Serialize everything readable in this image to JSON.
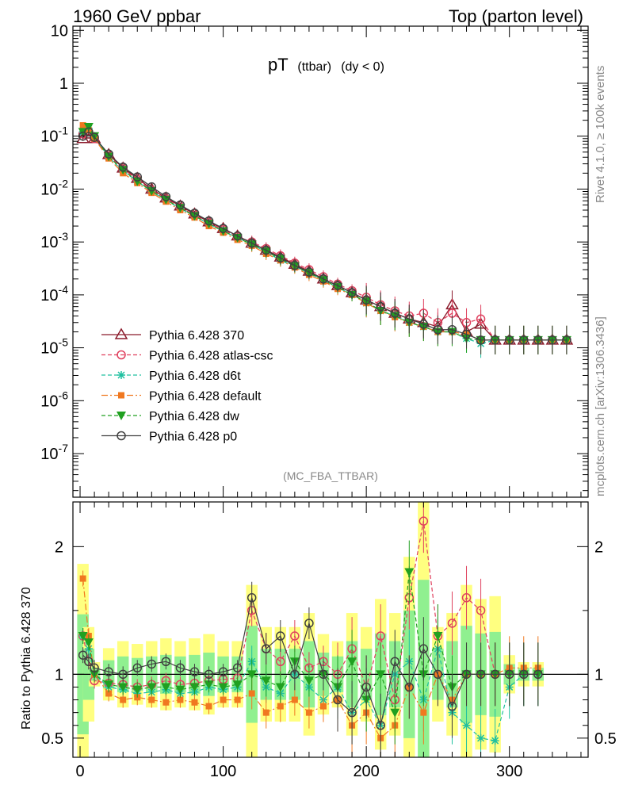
{
  "header": {
    "left": "1960 GeV ppbar",
    "right": "Top (parton level)"
  },
  "title": {
    "main": "pT",
    "sub": "(ttbar)",
    "cond": "(dy < 0)"
  },
  "analysis_label": "(MC_FBA_TTBAR)",
  "side_labels": {
    "rivet": "Rivet 4.1.0, ≥ 100k events",
    "mcplots": "mcplots.cern.ch [arXiv:1306.3436]"
  },
  "ratio_ylabel": "Ratio to Pythia 6.428 370",
  "colors": {
    "370": "#8b1a2b",
    "atlas": "#e0405e",
    "d6t": "#20c0a0",
    "default": "#f07820",
    "dw": "#20a020",
    "p0": "#404040",
    "band_yellow": "#ffff80",
    "band_green": "#90f090"
  },
  "chart_data": [
    {
      "type": "line",
      "title": "pT (ttbar) (dy < 0)",
      "xlabel": "",
      "ylabel": "",
      "xlim": [
        -5,
        355
      ],
      "ylim": [
        1.5e-08,
        12
      ],
      "yscale": "log",
      "ytick_labels": [
        "10",
        "1",
        "10^-1",
        "10^-2",
        "10^-3",
        "10^-4",
        "10^-5",
        "10^-6",
        "10^-7"
      ],
      "x": [
        2,
        6,
        10,
        20,
        30,
        40,
        50,
        60,
        70,
        80,
        90,
        100,
        110,
        120,
        130,
        140,
        150,
        160,
        170,
        180,
        190,
        200,
        210,
        220,
        230,
        240,
        250,
        260,
        270,
        280,
        290,
        300,
        310,
        320,
        330,
        340
      ],
      "series": [
        {
          "name": "Pythia 6.428 370",
          "values": [
            0.09,
            0.11,
            0.09,
            0.045,
            0.025,
            0.016,
            0.01,
            0.0068,
            0.0048,
            0.0034,
            0.0024,
            0.0018,
            0.0013,
            0.00095,
            0.0007,
            0.00052,
            0.00038,
            0.00028,
            0.0002,
            0.00015,
            0.00011,
            8e-05,
            6e-05,
            4.5e-05,
            3.5e-05,
            3e-05,
            2.5e-05,
            6.5e-05,
            2e-05,
            2.8e-05,
            1.4e-05,
            1.4e-05,
            1.4e-05,
            1.4e-05,
            1.4e-05,
            1.4e-05
          ]
        },
        {
          "name": "Pythia 6.428 atlas-csc",
          "values": [
            0.11,
            0.12,
            0.09,
            0.042,
            0.024,
            0.015,
            0.0095,
            0.0065,
            0.0045,
            0.0032,
            0.0023,
            0.0017,
            0.00125,
            0.001,
            0.00075,
            0.00055,
            0.0004,
            0.0003,
            0.00022,
            0.00016,
            0.00012,
            9e-05,
            6.5e-05,
            5e-05,
            4e-05,
            4.5e-05,
            3e-05,
            4.5e-05,
            3e-05,
            3.5e-05,
            1.4e-05,
            1.4e-05,
            1.4e-05,
            1.4e-05,
            1.4e-05,
            1.4e-05
          ]
        },
        {
          "name": "Pythia 6.428 d6t",
          "values": [
            0.12,
            0.14,
            0.1,
            0.04,
            0.022,
            0.014,
            0.009,
            0.0062,
            0.0043,
            0.0031,
            0.0022,
            0.0016,
            0.0012,
            0.0009,
            0.00065,
            0.00045,
            0.00034,
            0.00026,
            0.00019,
            0.00014,
            0.0001,
            7e-05,
            5e-05,
            4e-05,
            3e-05,
            2.5e-05,
            2e-05,
            2e-05,
            1.5e-05,
            1.2e-05,
            1.4e-05,
            1.4e-05,
            1.4e-05,
            1.4e-05,
            1.4e-05,
            1.4e-05
          ]
        },
        {
          "name": "Pythia 6.428 default",
          "values": [
            0.16,
            0.13,
            0.09,
            0.038,
            0.02,
            0.013,
            0.0085,
            0.0058,
            0.004,
            0.0029,
            0.002,
            0.0015,
            0.0011,
            0.00085,
            0.0006,
            0.00045,
            0.00033,
            0.00024,
            0.00018,
            0.00013,
            0.0001,
            7e-05,
            5e-05,
            3.8e-05,
            3e-05,
            2.5e-05,
            2e-05,
            2e-05,
            1.8e-05,
            1.4e-05,
            1.4e-05,
            1.4e-05,
            1.4e-05,
            1.4e-05,
            1.4e-05,
            1.4e-05
          ]
        },
        {
          "name": "Pythia 6.428 dw",
          "values": [
            0.12,
            0.15,
            0.1,
            0.041,
            0.023,
            0.014,
            0.0092,
            0.0063,
            0.0044,
            0.0031,
            0.0022,
            0.0016,
            0.0012,
            0.0009,
            0.00066,
            0.00048,
            0.00035,
            0.00026,
            0.00019,
            0.00014,
            0.0001,
            7.5e-05,
            5e-05,
            4e-05,
            3e-05,
            2.5e-05,
            2e-05,
            2e-05,
            1.5e-05,
            1.4e-05,
            1.4e-05,
            1.4e-05,
            1.4e-05,
            1.4e-05,
            1.4e-05,
            1.4e-05
          ]
        },
        {
          "name": "Pythia 6.428 p0",
          "values": [
            0.1,
            0.12,
            0.095,
            0.046,
            0.026,
            0.017,
            0.011,
            0.0072,
            0.005,
            0.0035,
            0.0025,
            0.0018,
            0.0013,
            0.00095,
            0.0007,
            0.0005,
            0.00036,
            0.00027,
            0.0002,
            0.00015,
            0.00011,
            8e-05,
            6e-05,
            4.5e-05,
            3.5e-05,
            2.8e-05,
            2.2e-05,
            2.2e-05,
            1.8e-05,
            1.4e-05,
            1.4e-05,
            1.4e-05,
            1.4e-05,
            1.4e-05,
            1.4e-05,
            1.4e-05
          ]
        }
      ]
    },
    {
      "type": "line",
      "title": "",
      "xlabel": "",
      "ylabel": "Ratio to Pythia 6.428 370",
      "xlim": [
        -5,
        355
      ],
      "ylim": [
        0.35,
        2.35
      ],
      "xtick_labels": [
        "0",
        "100",
        "200",
        "300"
      ],
      "ytick_labels": [
        "0.5",
        "1",
        "2"
      ],
      "x": [
        2,
        6,
        10,
        20,
        30,
        40,
        50,
        60,
        70,
        80,
        90,
        100,
        110,
        120,
        130,
        140,
        150,
        160,
        170,
        180,
        190,
        200,
        210,
        220,
        230,
        240,
        250,
        260,
        270,
        280,
        290,
        300,
        310,
        320
      ],
      "series": [
        {
          "name": "Pythia 6.428 atlas-csc",
          "values": [
            1.3,
            1.1,
            0.95,
            0.93,
            0.92,
            0.9,
            0.92,
            0.95,
            0.92,
            0.93,
            0.95,
            0.96,
            0.97,
            1.5,
            1.2,
            1.1,
            1.3,
            1.05,
            1.1,
            1.0,
            1.2,
            0.9,
            1.3,
            0.8,
            1.6,
            2.2,
            1.3,
            1.4,
            1.6,
            1.5,
            1.0,
            1.0,
            1.0,
            1.0
          ]
        },
        {
          "name": "Pythia 6.428 d6t",
          "values": [
            1.3,
            1.2,
            1.0,
            0.9,
            0.88,
            0.85,
            0.86,
            0.88,
            0.85,
            0.86,
            0.9,
            0.88,
            0.9,
            1.1,
            0.9,
            0.85,
            1.0,
            0.9,
            0.8,
            0.9,
            0.7,
            0.8,
            0.6,
            1.0,
            1.1,
            0.8,
            1.2,
            0.7,
            0.6,
            0.5,
            0.48,
            0.9,
            1.0,
            1.0
          ]
        },
        {
          "name": "Pythia 6.428 default",
          "values": [
            1.75,
            1.3,
            1.0,
            0.85,
            0.8,
            0.82,
            0.8,
            0.78,
            0.8,
            0.78,
            0.75,
            0.8,
            0.8,
            0.85,
            0.7,
            0.75,
            0.8,
            0.7,
            0.75,
            0.8,
            0.6,
            0.7,
            0.5,
            0.6,
            0.9,
            0.7,
            1.0,
            0.8,
            1.0,
            1.0,
            1.0,
            1.05,
            1.05,
            1.05
          ]
        },
        {
          "name": "Pythia 6.428 dw",
          "values": [
            1.3,
            1.25,
            1.0,
            0.92,
            0.9,
            0.88,
            0.9,
            0.9,
            0.88,
            0.9,
            0.92,
            0.9,
            0.92,
            1.0,
            0.95,
            0.9,
            1.1,
            0.95,
            1.0,
            0.9,
            1.1,
            0.8,
            1.0,
            0.7,
            1.8,
            1.0,
            1.3,
            0.9,
            1.0,
            1.0,
            1.0,
            1.0,
            1.0,
            1.0
          ]
        },
        {
          "name": "Pythia 6.428 p0",
          "values": [
            1.15,
            1.1,
            1.05,
            1.02,
            1.0,
            1.05,
            1.08,
            1.1,
            1.05,
            1.02,
            1.0,
            1.02,
            1.05,
            1.6,
            1.2,
            1.3,
            1.0,
            1.4,
            1.0,
            0.8,
            0.7,
            0.9,
            0.6,
            1.1,
            0.9,
            1.2,
            1.0,
            0.75,
            1.0,
            1.0,
            1.0,
            1.0,
            1.0,
            1.0
          ]
        }
      ]
    }
  ]
}
